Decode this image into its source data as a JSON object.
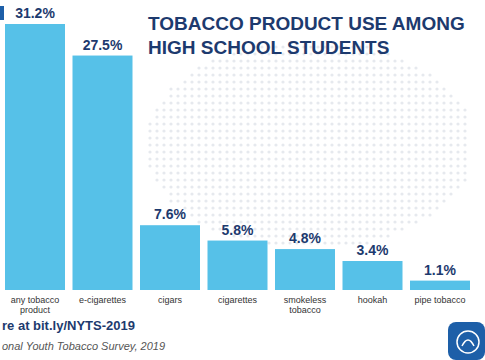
{
  "chart_data": {
    "type": "bar",
    "title": "TOBACCO PRODUCT USE AMONG HIGH SCHOOL STUDENTS",
    "categories": [
      "any tobacco product",
      "e-cigarettes",
      "cigars",
      "cigarettes",
      "smokeless tobacco",
      "hookah",
      "pipe tobacco"
    ],
    "values": [
      31.2,
      27.5,
      7.6,
      5.8,
      4.8,
      3.4,
      1.1
    ],
    "value_labels": [
      "31.2%",
      "27.5%",
      "7.6%",
      "5.8%",
      "4.8%",
      "3.4%",
      "1.1%"
    ],
    "color": "#56c1e8",
    "data_labels": true,
    "tick_labels": "x",
    "grid": false,
    "annotations": [
      "re at bit.ly/NYTS-2019",
      "onal Youth Tobacco Survey, 2019"
    ]
  }
}
